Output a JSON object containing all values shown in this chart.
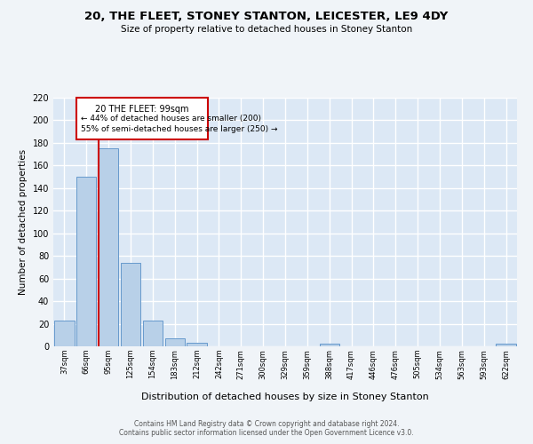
{
  "title1": "20, THE FLEET, STONEY STANTON, LEICESTER, LE9 4DY",
  "title2": "Size of property relative to detached houses in Stoney Stanton",
  "xlabel": "Distribution of detached houses by size in Stoney Stanton",
  "ylabel": "Number of detached properties",
  "bin_labels": [
    "37sqm",
    "66sqm",
    "95sqm",
    "125sqm",
    "154sqm",
    "183sqm",
    "212sqm",
    "242sqm",
    "271sqm",
    "300sqm",
    "329sqm",
    "359sqm",
    "388sqm",
    "417sqm",
    "446sqm",
    "476sqm",
    "505sqm",
    "534sqm",
    "563sqm",
    "593sqm",
    "622sqm"
  ],
  "bar_values": [
    23,
    150,
    175,
    74,
    23,
    7,
    3,
    0,
    0,
    0,
    0,
    0,
    2,
    0,
    0,
    0,
    0,
    0,
    0,
    0,
    2
  ],
  "bar_color": "#b8d0e8",
  "bar_edge_color": "#6699cc",
  "bg_color": "#dce8f5",
  "grid_color": "#ffffff",
  "fig_bg_color": "#f0f4f8",
  "ylim": [
    0,
    220
  ],
  "yticks": [
    0,
    20,
    40,
    60,
    80,
    100,
    120,
    140,
    160,
    180,
    200,
    220
  ],
  "marker_color": "#cc0000",
  "annotation_title": "20 THE FLEET: 99sqm",
  "annotation_line1": "← 44% of detached houses are smaller (200)",
  "annotation_line2": "55% of semi-detached houses are larger (250) →",
  "footer1": "Contains HM Land Registry data © Crown copyright and database right 2024.",
  "footer2": "Contains public sector information licensed under the Open Government Licence v3.0."
}
